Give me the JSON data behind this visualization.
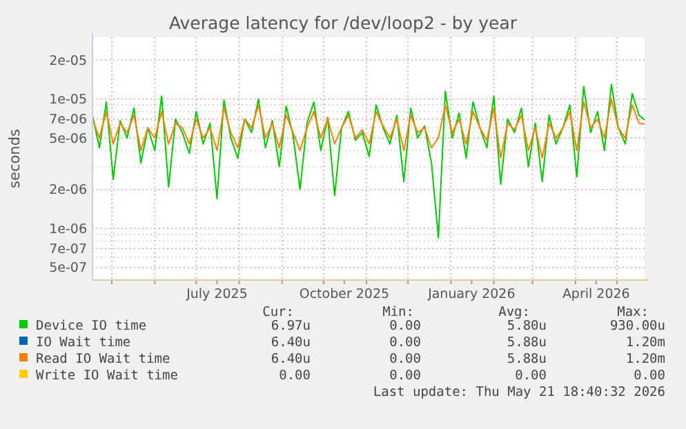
{
  "chart_data": {
    "type": "line",
    "title": "Average latency for /dev/loop2 - by year",
    "ylabel": "seconds",
    "log": true,
    "grid": true,
    "legend": "bottom",
    "line_style": "solid",
    "xlim": [
      "2025-04-17",
      "2026-05-21"
    ],
    "xticks": [
      {
        "value": "2025-05-01",
        "label": null
      },
      {
        "value": "2025-06-01",
        "label": null
      },
      {
        "value": "2025-07-01",
        "label": null
      },
      {
        "value": "2025-07-16",
        "label": "July 2025"
      },
      {
        "value": "2025-08-01",
        "label": null
      },
      {
        "value": "2025-09-01",
        "label": null
      },
      {
        "value": "2025-10-01",
        "label": null
      },
      {
        "value": "2025-10-16",
        "label": "October 2025"
      },
      {
        "value": "2025-11-01",
        "label": null
      },
      {
        "value": "2025-12-01",
        "label": null
      },
      {
        "value": "2026-01-01",
        "label": null
      },
      {
        "value": "2026-01-16",
        "label": "January 2026"
      },
      {
        "value": "2026-02-01",
        "label": null
      },
      {
        "value": "2026-03-01",
        "label": null
      },
      {
        "value": "2026-04-01",
        "label": null
      },
      {
        "value": "2026-04-16",
        "label": "April 2026"
      },
      {
        "value": "2026-05-01",
        "label": null
      }
    ],
    "ylim": [
      4e-07,
      3e-05
    ],
    "yticks": [
      {
        "value": 5e-07,
        "label": "5e-07"
      },
      {
        "value": 6e-07,
        "label": null
      },
      {
        "value": 7e-07,
        "label": "7e-07"
      },
      {
        "value": 8e-07,
        "label": null
      },
      {
        "value": 9e-07,
        "label": null
      },
      {
        "value": 1e-06,
        "label": "1e-06"
      },
      {
        "value": 2e-06,
        "label": "2e-06"
      },
      {
        "value": 3e-06,
        "label": null
      },
      {
        "value": 4e-06,
        "label": null
      },
      {
        "value": 5e-06,
        "label": "5e-06"
      },
      {
        "value": 6e-06,
        "label": null
      },
      {
        "value": 7e-06,
        "label": "7e-06"
      },
      {
        "value": 8e-06,
        "label": null
      },
      {
        "value": 9e-06,
        "label": null
      },
      {
        "value": 1e-05,
        "label": "1e-05"
      },
      {
        "value": 2e-05,
        "label": "2e-05"
      }
    ],
    "x": [
      "2025-04-17",
      "2025-04-22",
      "2025-04-27",
      "2025-05-02",
      "2025-05-07",
      "2025-05-12",
      "2025-05-17",
      "2025-05-22",
      "2025-05-27",
      "2025-06-01",
      "2025-06-06",
      "2025-06-11",
      "2025-06-16",
      "2025-06-21",
      "2025-06-26",
      "2025-07-01",
      "2025-07-06",
      "2025-07-11",
      "2025-07-16",
      "2025-07-21",
      "2025-07-26",
      "2025-07-31",
      "2025-08-05",
      "2025-08-10",
      "2025-08-15",
      "2025-08-20",
      "2025-08-25",
      "2025-08-30",
      "2025-09-04",
      "2025-09-09",
      "2025-09-14",
      "2025-09-19",
      "2025-09-24",
      "2025-09-29",
      "2025-10-04",
      "2025-10-09",
      "2025-10-14",
      "2025-10-19",
      "2025-10-24",
      "2025-10-29",
      "2025-11-03",
      "2025-11-08",
      "2025-11-13",
      "2025-11-18",
      "2025-11-23",
      "2025-11-28",
      "2025-12-03",
      "2025-12-08",
      "2025-12-13",
      "2025-12-18",
      "2025-12-23",
      "2025-12-28",
      "2026-01-02",
      "2026-01-07",
      "2026-01-12",
      "2026-01-17",
      "2026-01-22",
      "2026-01-27",
      "2026-02-01",
      "2026-02-06",
      "2026-02-11",
      "2026-02-16",
      "2026-02-21",
      "2026-02-26",
      "2026-03-03",
      "2026-03-08",
      "2026-03-13",
      "2026-03-18",
      "2026-03-23",
      "2026-03-28",
      "2026-04-02",
      "2026-04-07",
      "2026-04-12",
      "2026-04-17",
      "2026-04-22",
      "2026-04-27",
      "2026-05-02",
      "2026-05-07",
      "2026-05-12",
      "2026-05-17",
      "2026-05-21"
    ],
    "series": [
      {
        "name": "Device IO time",
        "color": "#00cc00",
        "values": [
          7.5e-06,
          4.2e-06,
          9.5e-06,
          2.4e-06,
          6.8e-06,
          5e-06,
          8.5e-06,
          3.2e-06,
          6e-06,
          4e-06,
          1.05e-05,
          2.1e-06,
          7e-06,
          5.5e-06,
          3.8e-06,
          8e-06,
          4.5e-06,
          6.5e-06,
          1.7e-06,
          9.8e-06,
          5e-06,
          3.5e-06,
          7e-06,
          5.5e-06,
          1e-05,
          4.2e-06,
          6.8e-06,
          3e-06,
          8.8e-06,
          5.2e-06,
          2e-06,
          6.5e-06,
          9.5e-06,
          4e-06,
          7.2e-06,
          1.8e-06,
          6e-06,
          8e-06,
          4.8e-06,
          5.5e-06,
          3.6e-06,
          9e-06,
          6e-06,
          4.5e-06,
          7.5e-06,
          2.3e-06,
          8.5e-06,
          5e-06,
          6.2e-06,
          3.2e-06,
          8.5e-07,
          1.15e-05,
          5e-06,
          7.8e-06,
          3.5e-06,
          9.5e-06,
          6e-06,
          4.2e-06,
          1.05e-05,
          2.2e-06,
          7e-06,
          5.5e-06,
          8.5e-06,
          3e-06,
          6.5e-06,
          2.3e-06,
          7.5e-06,
          4.5e-06,
          6e-06,
          9e-06,
          2.5e-06,
          1.25e-05,
          5.5e-06,
          8e-06,
          4e-06,
          1.3e-05,
          6e-06,
          4.5e-06,
          1.1e-05,
          7.5e-06,
          6.9e-06
        ]
      },
      {
        "name": "IO Wait time",
        "color": "#0066b3",
        "values": [
          null,
          null,
          null,
          null,
          null,
          null,
          null,
          null,
          null,
          null,
          null,
          null,
          null,
          null,
          null,
          null,
          null,
          null,
          null,
          null,
          null,
          null,
          null,
          null,
          null,
          null,
          null,
          null,
          null,
          null,
          null,
          null,
          null,
          null,
          null,
          null,
          null,
          null,
          null,
          null,
          null,
          null,
          null,
          null,
          null,
          null,
          null,
          null,
          null,
          null,
          null,
          null,
          null,
          null,
          null,
          null,
          null,
          null,
          null,
          null,
          null,
          null,
          null,
          null,
          null,
          null,
          null,
          null,
          null,
          null,
          null,
          null,
          null,
          null,
          null,
          null,
          null,
          null,
          null,
          null,
          null
        ]
      },
      {
        "name": "Read IO Wait time",
        "color": "#ff8000",
        "values": [
          7e-06,
          5e-06,
          8e-06,
          4.5e-06,
          6.5e-06,
          5.5e-06,
          7.5e-06,
          4e-06,
          6e-06,
          5e-06,
          8e-06,
          4.5e-06,
          6.5e-06,
          6e-06,
          4.5e-06,
          7e-06,
          5e-06,
          6e-06,
          4e-06,
          8.5e-06,
          5.5e-06,
          4.2e-06,
          7e-06,
          6e-06,
          9e-06,
          5e-06,
          6.5e-06,
          4.2e-06,
          7.5e-06,
          5.5e-06,
          4e-06,
          6e-06,
          8e-06,
          5e-06,
          7e-06,
          4.5e-06,
          6e-06,
          7.5e-06,
          5e-06,
          5.8e-06,
          4.5e-06,
          8e-06,
          6.2e-06,
          5e-06,
          7e-06,
          4e-06,
          7.5e-06,
          5.5e-06,
          6e-06,
          4.2e-06,
          5e-06,
          9e-06,
          5.5e-06,
          7e-06,
          4.5e-06,
          8e-06,
          6e-06,
          4.8e-06,
          8.5e-06,
          3.5e-06,
          6.5e-06,
          5.8e-06,
          7.5e-06,
          4e-06,
          6e-06,
          3.5e-06,
          6.5e-06,
          5e-06,
          6e-06,
          8e-06,
          4e-06,
          9.5e-06,
          6e-06,
          7e-06,
          5e-06,
          1e-05,
          6e-06,
          5e-06,
          9e-06,
          6.5e-06,
          6.4e-06
        ]
      },
      {
        "name": "Write IO Wait time",
        "color": "#ffcc00",
        "values": [
          null,
          null,
          null,
          null,
          null,
          null,
          null,
          null,
          null,
          null,
          null,
          null,
          null,
          null,
          null,
          null,
          null,
          null,
          null,
          null,
          null,
          null,
          null,
          null,
          null,
          null,
          null,
          null,
          null,
          null,
          null,
          null,
          null,
          null,
          null,
          null,
          null,
          null,
          null,
          null,
          null,
          null,
          null,
          null,
          null,
          null,
          null,
          null,
          null,
          null,
          null,
          null,
          null,
          null,
          null,
          null,
          null,
          null,
          null,
          null,
          null,
          null,
          null,
          null,
          null,
          null,
          null,
          null,
          null,
          null,
          null,
          null,
          null,
          null,
          null,
          null,
          null,
          null,
          null,
          null,
          null
        ]
      }
    ],
    "annotations": [
      "Cur:",
      "Min:",
      "Avg:",
      "Max:",
      "6.97u",
      "0.00",
      "5.80u",
      "930.00u",
      "6.40u",
      "0.00",
      "5.88u",
      "1.20m",
      "6.40u",
      "0.00",
      "5.88u",
      "1.20m",
      "0.00",
      "0.00",
      "0.00",
      "0.00",
      "Last update: Thu May 21 18:40:32 2026"
    ]
  }
}
